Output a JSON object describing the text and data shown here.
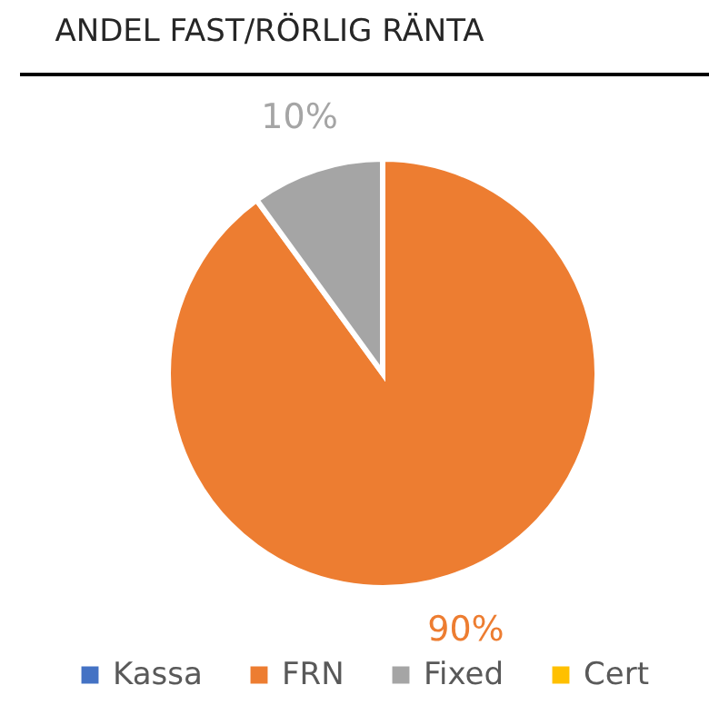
{
  "chart_data": {
    "type": "pie",
    "title": "ANDEL FAST/RÖRLIG RÄNTA",
    "categories": [
      "Kassa",
      "FRN",
      "Fixed",
      "Cert"
    ],
    "values": [
      0,
      90,
      10,
      0
    ],
    "colors": [
      "#4472c4",
      "#ed7d31",
      "#a5a5a5",
      "#ffc000"
    ],
    "value_labels": [
      null,
      "90%",
      "10%",
      null
    ],
    "legend": "bottom"
  }
}
